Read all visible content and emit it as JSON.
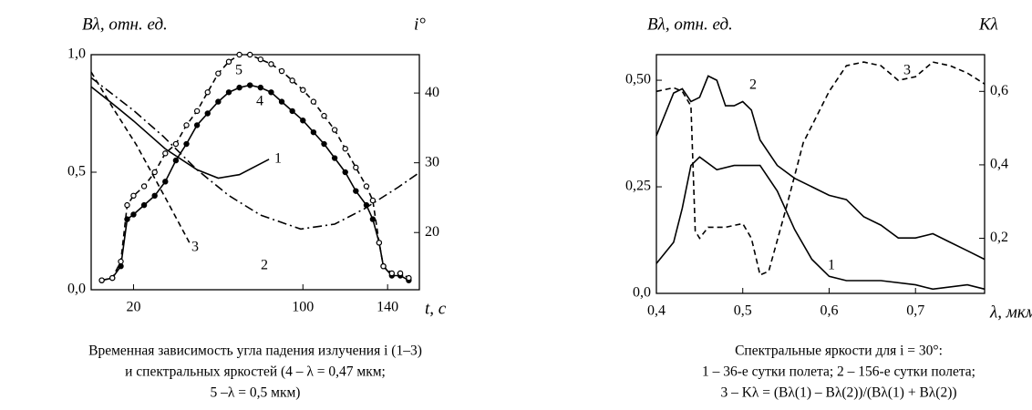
{
  "chart_data": [
    {
      "type": "line",
      "ylabel": "Bλ, отн. ед.",
      "y2label": "i°",
      "xlabel": "t, c",
      "caption": [
        "Временная зависимость угла падения излучения i (1–3)",
        "и спектральных яркостей (4 – λ = 0,47 мкм;",
        "5 –λ = 0,5 мкм)"
      ],
      "xlim": [
        0,
        155
      ],
      "xticks": [
        20,
        100,
        140
      ],
      "ylim": [
        0,
        1.0
      ],
      "yticks": [
        {
          "value": 0,
          "label": "0,0"
        },
        {
          "value": 0.5,
          "label": "0,5"
        },
        {
          "value": 1.0,
          "label": "1,0"
        }
      ],
      "y2lim": [
        11.8,
        45.5
      ],
      "y2ticks": [
        20,
        30,
        40
      ],
      "series": [
        {
          "name": "1",
          "color": "#000",
          "style": "solid",
          "axis": "y2",
          "x": [
            0,
            10,
            20,
            35,
            50,
            60,
            70,
            84
          ],
          "values": [
            40.9,
            38.5,
            36,
            32,
            29,
            27.8,
            28.3,
            30.5
          ]
        },
        {
          "name": "2",
          "color": "#000",
          "style": "dashdot",
          "axis": "y2",
          "x": [
            0,
            20,
            34,
            50,
            65,
            80,
            99,
            115,
            129,
            145,
            155
          ],
          "values": [
            42.2,
            37.5,
            33.8,
            29,
            25.3,
            22.5,
            20.5,
            21.2,
            23.4,
            26.5,
            28.6
          ]
        },
        {
          "name": "3",
          "color": "#000",
          "style": "dash",
          "axis": "y2",
          "x": [
            0,
            10,
            21.5,
            35,
            47
          ],
          "values": [
            43,
            38,
            32.5,
            25,
            18.2
          ]
        },
        {
          "name": "4",
          "color": "#000",
          "style": "solid",
          "marker": "filled",
          "x": [
            5,
            10,
            14,
            17,
            20,
            25,
            30,
            35,
            40,
            45,
            50,
            55,
            60,
            65,
            70,
            75,
            80,
            85,
            90,
            95,
            100,
            105,
            110,
            115,
            120,
            125,
            130,
            133,
            136,
            138,
            142,
            146,
            150
          ],
          "values": [
            0.04,
            0.05,
            0.1,
            0.3,
            0.32,
            0.36,
            0.4,
            0.46,
            0.55,
            0.62,
            0.7,
            0.75,
            0.8,
            0.84,
            0.86,
            0.87,
            0.86,
            0.84,
            0.8,
            0.76,
            0.72,
            0.67,
            0.62,
            0.56,
            0.5,
            0.42,
            0.36,
            0.3,
            0.2,
            0.1,
            0.06,
            0.06,
            0.04
          ]
        },
        {
          "name": "5",
          "color": "#000",
          "style": "dash",
          "marker": "open",
          "x": [
            5,
            10,
            14,
            17,
            20,
            25,
            30,
            35,
            40,
            45,
            50,
            55,
            60,
            65,
            70,
            75,
            80,
            85,
            90,
            95,
            100,
            105,
            110,
            115,
            120,
            125,
            130,
            133,
            136,
            138,
            142,
            146,
            150
          ],
          "values": [
            0.04,
            0.05,
            0.12,
            0.36,
            0.4,
            0.44,
            0.5,
            0.58,
            0.62,
            0.7,
            0.76,
            0.84,
            0.92,
            0.97,
            1.0,
            1.0,
            0.98,
            0.96,
            0.93,
            0.89,
            0.85,
            0.8,
            0.74,
            0.68,
            0.6,
            0.52,
            0.44,
            0.38,
            0.2,
            0.1,
            0.07,
            0.07,
            0.05
          ]
        }
      ]
    },
    {
      "type": "line",
      "ylabel": "Bλ, отн. ед.",
      "y2label": "Kλ",
      "xlabel": "λ, мкм",
      "caption": [
        "Спектральные яркости для i = 30°:",
        "1 – 36-е сутки полета; 2 – 156-е сутки полета;",
        "3 – Kλ = (Bλ(1) – Bλ(2))/(Bλ(1) + Bλ(2))"
      ],
      "xlim": [
        0.4,
        0.78
      ],
      "xticks": [
        {
          "value": 0.4,
          "label": "0,4"
        },
        {
          "value": 0.5,
          "label": "0,5"
        },
        {
          "value": 0.6,
          "label": "0,6"
        },
        {
          "value": 0.7,
          "label": "0,7"
        }
      ],
      "ylim": [
        0,
        0.56
      ],
      "yticks": [
        {
          "value": 0,
          "label": "0,0"
        },
        {
          "value": 0.25,
          "label": "0,25"
        },
        {
          "value": 0.5,
          "label": "0,50"
        }
      ],
      "y2lim": [
        0.05,
        0.7
      ],
      "y2ticks": [
        {
          "value": 0.2,
          "label": "0,2"
        },
        {
          "value": 0.4,
          "label": "0,4"
        },
        {
          "value": 0.6,
          "label": "0,6"
        }
      ],
      "series": [
        {
          "name": "1",
          "color": "#000",
          "style": "solid",
          "x": [
            0.4,
            0.42,
            0.43,
            0.44,
            0.45,
            0.47,
            0.49,
            0.5,
            0.52,
            0.54,
            0.56,
            0.58,
            0.6,
            0.62,
            0.66,
            0.7,
            0.72,
            0.76,
            0.78
          ],
          "values": [
            0.07,
            0.12,
            0.2,
            0.3,
            0.32,
            0.29,
            0.3,
            0.3,
            0.3,
            0.24,
            0.15,
            0.08,
            0.04,
            0.03,
            0.03,
            0.02,
            0.01,
            0.02,
            0.01
          ]
        },
        {
          "name": "2",
          "color": "#000",
          "style": "solid",
          "x": [
            0.4,
            0.42,
            0.43,
            0.44,
            0.45,
            0.46,
            0.47,
            0.48,
            0.49,
            0.5,
            0.51,
            0.52,
            0.54,
            0.56,
            0.58,
            0.6,
            0.62,
            0.64,
            0.66,
            0.68,
            0.7,
            0.72,
            0.74,
            0.76,
            0.78
          ],
          "values": [
            0.37,
            0.47,
            0.48,
            0.45,
            0.46,
            0.51,
            0.5,
            0.44,
            0.44,
            0.45,
            0.43,
            0.36,
            0.3,
            0.27,
            0.25,
            0.23,
            0.22,
            0.18,
            0.16,
            0.13,
            0.13,
            0.14,
            0.12,
            0.1,
            0.08
          ]
        },
        {
          "name": "3",
          "color": "#000",
          "style": "dash",
          "axis": "y2",
          "x": [
            0.4,
            0.42,
            0.43,
            0.44,
            0.445,
            0.45,
            0.46,
            0.48,
            0.5,
            0.51,
            0.52,
            0.53,
            0.55,
            0.57,
            0.6,
            0.62,
            0.64,
            0.66,
            0.68,
            0.7,
            0.72,
            0.74,
            0.76,
            0.78
          ],
          "values": [
            0.6,
            0.61,
            0.6,
            0.56,
            0.22,
            0.2,
            0.23,
            0.23,
            0.24,
            0.2,
            0.1,
            0.11,
            0.28,
            0.46,
            0.6,
            0.67,
            0.68,
            0.67,
            0.63,
            0.64,
            0.68,
            0.67,
            0.65,
            0.62
          ]
        }
      ]
    }
  ]
}
